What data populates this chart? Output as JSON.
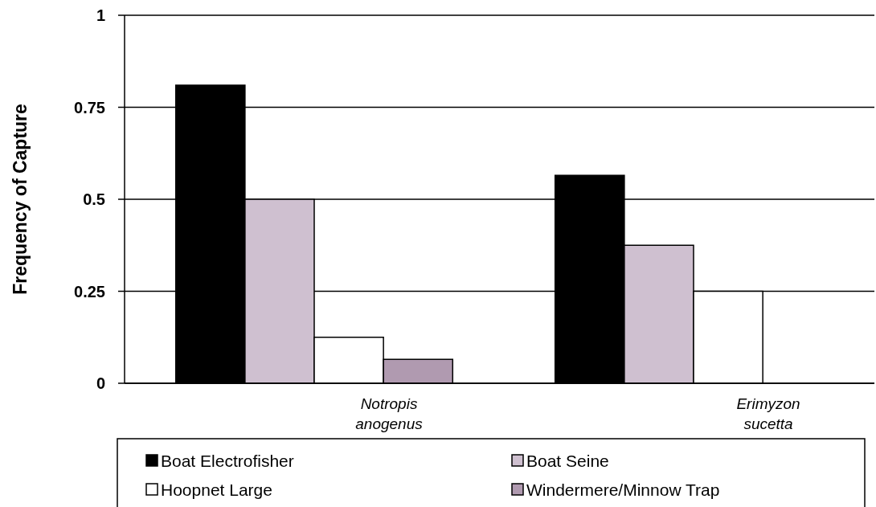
{
  "chart_data": {
    "type": "bar",
    "ylabel": "Frequency of Capture",
    "categories": [
      "Notropis anogenus",
      "Erimyzon sucetta"
    ],
    "series": [
      {
        "name": "Boat Electrofisher",
        "color": "#000000",
        "values": [
          0.81,
          0.565
        ]
      },
      {
        "name": "Boat Seine",
        "color": "#cfc0d0",
        "values": [
          0.5,
          0.375
        ]
      },
      {
        "name": "Hoopnet Large",
        "color": "#ffffff",
        "values": [
          0.125,
          0.25
        ]
      },
      {
        "name": "Windermere/Minnow Trap",
        "color": "#b09ab0",
        "values": [
          0.065,
          0
        ]
      }
    ],
    "ylim": [
      0,
      1
    ],
    "yticks": [
      0,
      0.25,
      0.5,
      0.75,
      1
    ],
    "grid": "y",
    "legend": "bottom"
  }
}
